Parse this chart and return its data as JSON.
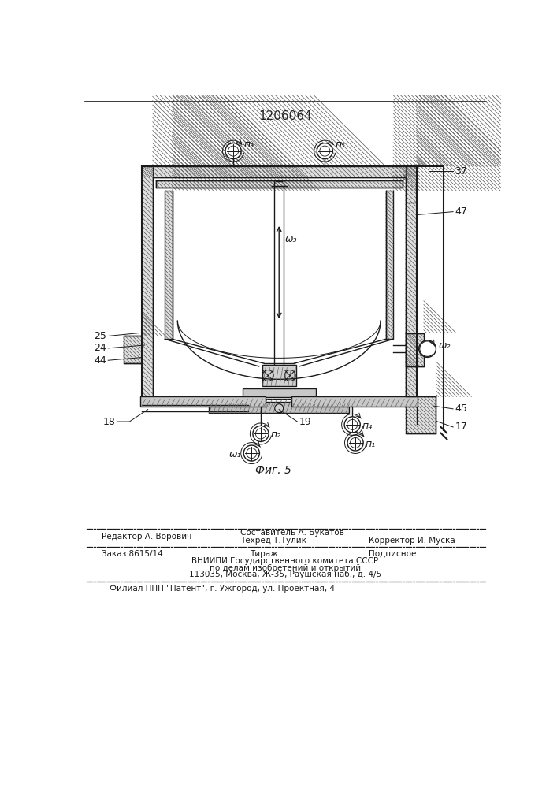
{
  "patent_number": "1206064",
  "fig_label": "Фиг. 5",
  "footer": {
    "editor": "Редактор А. Ворович",
    "composer": "Составитель А. Букатов",
    "techred": "Техред Т.Тулик",
    "corrector": "Корректор И. Муска",
    "order": "Заказ 8615/14",
    "tirazh": "Тираж",
    "podpisnoe": "Подписное",
    "vniishi": "ВНИИПИ Государственного комитета СССР",
    "po_delam": "по делам изобретений и открытий",
    "address": "113035, Москва, Ж-35, Раушская наб., д. 4/5",
    "filial": "Филиал ППП \"Патент\", г. Ужгород, ул. Проектная, 4"
  },
  "labels": {
    "n3": "п₃",
    "n5": "п₅",
    "omega3": "ω₃",
    "omega2": "ω₂",
    "omega1": "ω₁",
    "n2": "п₂",
    "n4": "п₄",
    "n1": "п₁",
    "num_37": "37",
    "num_47": "47",
    "num_45": "45",
    "num_17": "17",
    "num_25": "25",
    "num_24": "24",
    "num_44": "44",
    "num_18": "18",
    "num_19": "19"
  }
}
